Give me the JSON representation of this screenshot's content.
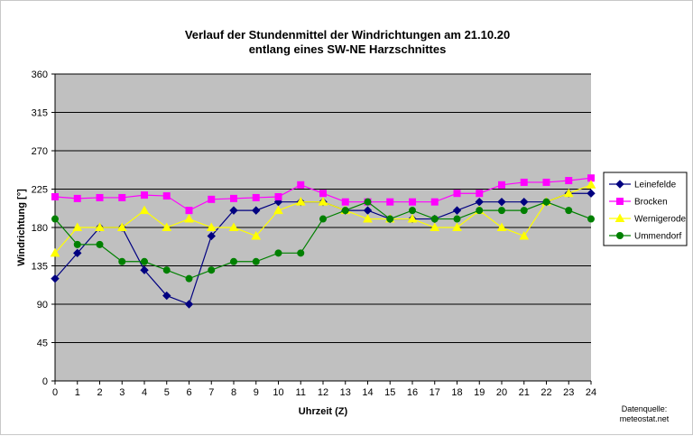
{
  "chart_data": {
    "type": "line",
    "title_line1": "Verlauf der Stundenmittel der Windrichtungen am 21.10.20",
    "title_line2": "entlang eines SW-NE Harzschnittes",
    "xlabel": "Uhrzeit (Z)",
    "ylabel": "Windrichtung [°]",
    "x": [
      0,
      1,
      2,
      3,
      4,
      5,
      6,
      7,
      8,
      9,
      10,
      11,
      12,
      13,
      14,
      15,
      16,
      17,
      18,
      19,
      20,
      21,
      22,
      23,
      24
    ],
    "xlim": [
      0,
      24
    ],
    "ylim": [
      0,
      360
    ],
    "yticks": [
      0,
      45,
      90,
      135,
      180,
      225,
      270,
      315,
      360
    ],
    "grid": true,
    "legend_position": "right",
    "series": [
      {
        "name": "Leinefelde",
        "color": "#000080",
        "marker": "diamond",
        "values": [
          120,
          150,
          180,
          180,
          130,
          100,
          90,
          170,
          200,
          200,
          210,
          210,
          210,
          200,
          200,
          190,
          190,
          190,
          200,
          210,
          210,
          210,
          210,
          220,
          220
        ]
      },
      {
        "name": "Brocken",
        "color": "#ff00ff",
        "marker": "square",
        "values": [
          216,
          214,
          215,
          215,
          218,
          217,
          200,
          213,
          214,
          215,
          216,
          230,
          220,
          210,
          210,
          210,
          210,
          210,
          220,
          220,
          230,
          233,
          233,
          235,
          238
        ]
      },
      {
        "name": "Wernigerode",
        "color": "#ffff00",
        "marker": "triangle",
        "values": [
          150,
          180,
          180,
          180,
          200,
          180,
          190,
          180,
          180,
          170,
          200,
          210,
          210,
          200,
          190,
          190,
          190,
          180,
          180,
          200,
          180,
          170,
          210,
          220,
          230
        ]
      },
      {
        "name": "Ummendorf",
        "color": "#008000",
        "marker": "circle",
        "values": [
          190,
          160,
          160,
          140,
          140,
          130,
          120,
          130,
          140,
          140,
          150,
          150,
          190,
          200,
          210,
          190,
          200,
          190,
          190,
          200,
          200,
          200,
          210,
          200,
          190
        ]
      }
    ],
    "source_line1": "Datenquelle:",
    "source_line2": "meteostat.net"
  },
  "colors": {
    "plot_background": "#c0c0c0",
    "gridline": "#000000"
  }
}
